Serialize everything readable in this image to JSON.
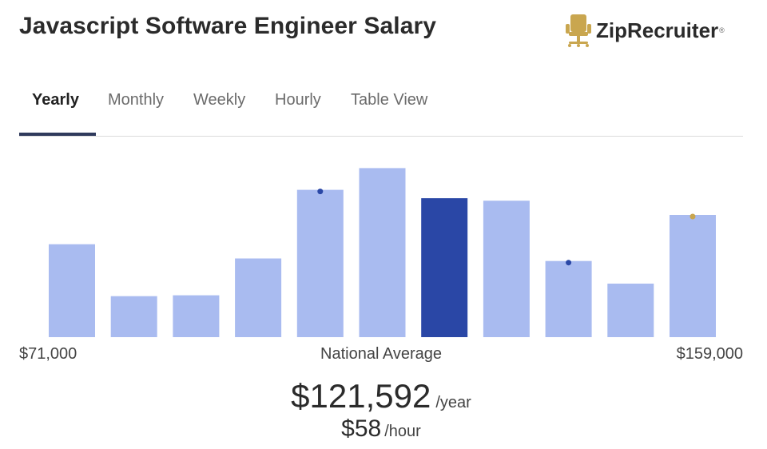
{
  "header": {
    "title": "Javascript Software Engineer Salary",
    "logo_text": "ZipRecruiter",
    "logo_mark": "®",
    "logo_icon": "chair-icon",
    "logo_color": "#c9a64f"
  },
  "tabs": [
    {
      "label": "Yearly",
      "active": true
    },
    {
      "label": "Monthly",
      "active": false
    },
    {
      "label": "Weekly",
      "active": false
    },
    {
      "label": "Hourly",
      "active": false
    },
    {
      "label": "Table View",
      "active": false
    }
  ],
  "chart_data": {
    "type": "bar",
    "title": "",
    "xlabel": "",
    "ylabel": "",
    "values": [
      111,
      49,
      50,
      94,
      176,
      202,
      166,
      163,
      91,
      64,
      146
    ],
    "ylim": [
      0,
      210
    ],
    "highlight_index": 6,
    "markers": [
      {
        "bar": 4,
        "color": "#2a47a6"
      },
      {
        "bar": 8,
        "color": "#2a47a6"
      },
      {
        "bar": 10,
        "color": "#c9a64f"
      }
    ],
    "bar_color": "#a9bbf0",
    "highlight_color": "#2a47a6",
    "min_label": "$71,000",
    "avg_label": "National Average",
    "max_label": "$159,000"
  },
  "salary": {
    "yearly": "$121,592",
    "yearly_unit": "/year",
    "hourly": "$58",
    "hourly_unit": "/hour"
  }
}
